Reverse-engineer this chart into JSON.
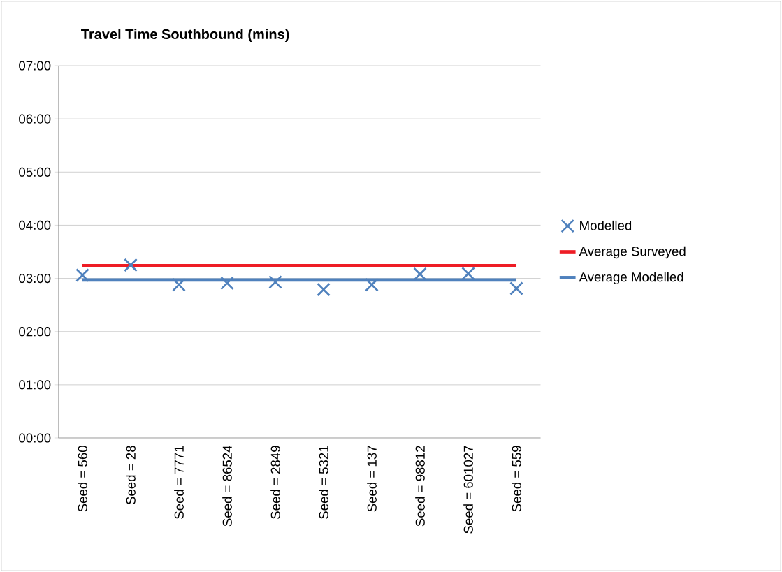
{
  "chart_data": {
    "type": "scatter",
    "title": "Travel Time Southbound (mins)",
    "categories": [
      "Seed = 560",
      "Seed = 28",
      "Seed = 7771",
      "Seed = 86524",
      "Seed = 2849",
      "Seed = 5321",
      "Seed = 137",
      "Seed = 98812",
      "Seed = 601027",
      "Seed = 559"
    ],
    "series": [
      {
        "name": "Modelled",
        "marker": "cross",
        "color": "#4f81bd",
        "values": [
          3.06,
          3.25,
          2.88,
          2.91,
          2.93,
          2.79,
          2.88,
          3.08,
          3.09,
          2.81
        ]
      },
      {
        "name": "Average Surveyed",
        "type": "line",
        "marker": "none",
        "color": "#ee1c25",
        "values": [
          3.24,
          3.24,
          3.24,
          3.24,
          3.24,
          3.24,
          3.24,
          3.24,
          3.24,
          3.24
        ]
      },
      {
        "name": "Average Modelled",
        "type": "line",
        "marker": "none",
        "color": "#4f81bd",
        "values": [
          2.97,
          2.97,
          2.97,
          2.97,
          2.97,
          2.97,
          2.97,
          2.97,
          2.97,
          2.97
        ]
      }
    ],
    "ylim": [
      0,
      7
    ],
    "yticks": [
      {
        "value": 0,
        "label": "00:00"
      },
      {
        "value": 1,
        "label": "01:00"
      },
      {
        "value": 2,
        "label": "02:00"
      },
      {
        "value": 3,
        "label": "03:00"
      },
      {
        "value": 4,
        "label": "04:00"
      },
      {
        "value": 5,
        "label": "05:00"
      },
      {
        "value": 6,
        "label": "06:00"
      },
      {
        "value": 7,
        "label": "07:00"
      }
    ],
    "grid": "y",
    "legend": "right"
  }
}
